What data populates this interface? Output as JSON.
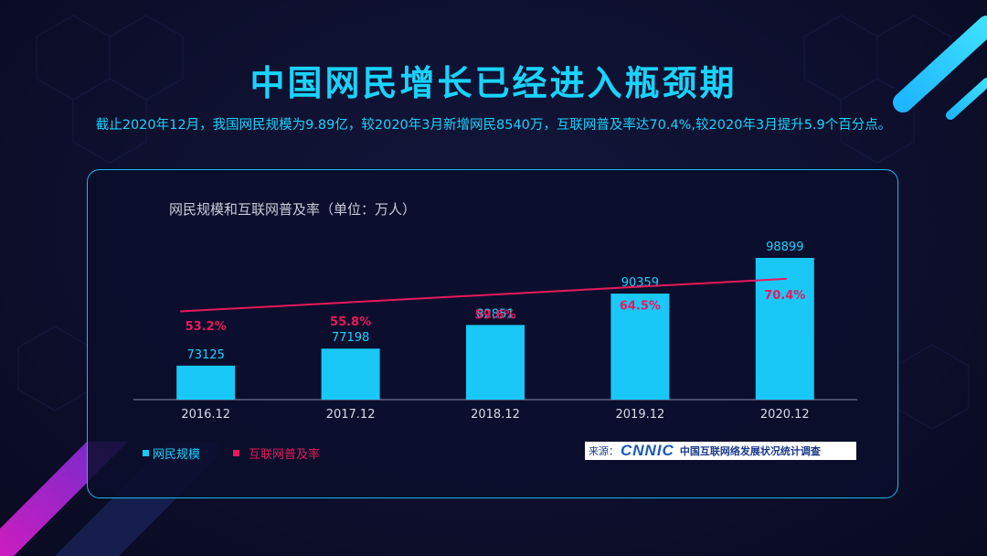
{
  "header": {
    "title": "中国网民增长已经进入瓶颈期",
    "subtitle": "截止2020年12月，我国网民规模为9.89亿，较2020年3月新增网民8540万，互联网普及率达70.4%,较2020年3月提升5.9个百分点。"
  },
  "chart_data": {
    "type": "bar",
    "title": "网民规模和互联网普及率（单位：万人）",
    "categories": [
      "2016.12",
      "2017.12",
      "2018.12",
      "2019.12",
      "2020.12"
    ],
    "series": [
      {
        "name": "网民规模",
        "type": "bar",
        "values": [
          73125,
          77198,
          82851,
          90359,
          98899
        ],
        "labels": [
          "73125",
          "77198",
          "82851",
          "90359",
          "98899"
        ]
      },
      {
        "name": "互联网普及率",
        "type": "line",
        "values": [
          53.2,
          55.8,
          59.6,
          64.5,
          70.4
        ],
        "labels": [
          "53.2%",
          "55.8%",
          "59.6%",
          "64.5%",
          "70.4%"
        ]
      }
    ],
    "legend": "bottom-left",
    "grid": false
  },
  "source": {
    "label": "来源：",
    "logo": "CNNIC",
    "org": "中国互联网络发展状况统计调查"
  },
  "colors": {
    "accent": "#19d3ff",
    "bar": "#19c8f7",
    "line": "#e8195c",
    "card_border": "#1cb8e6"
  }
}
